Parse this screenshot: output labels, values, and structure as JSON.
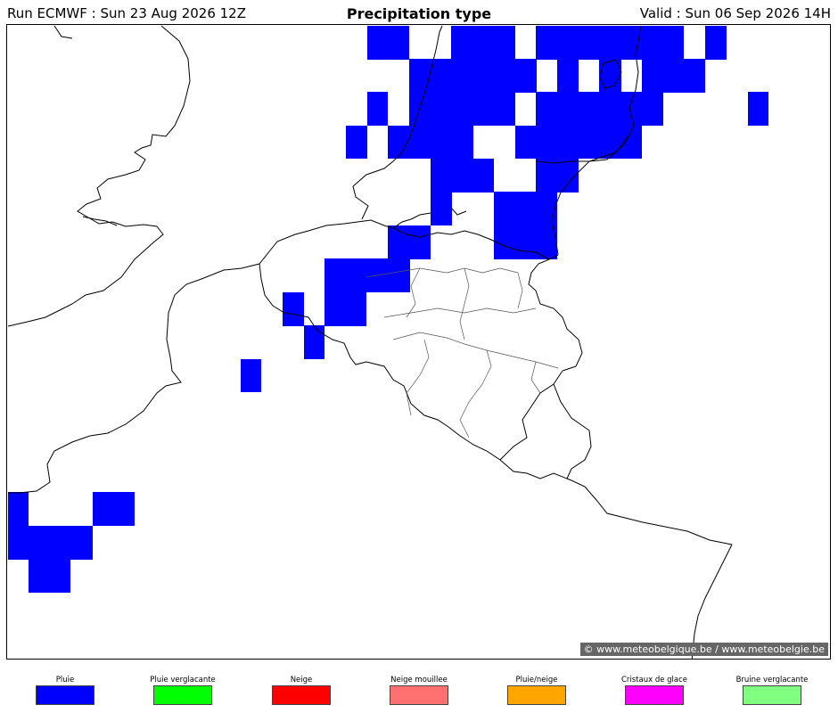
{
  "header": {
    "run": "Run ECMWF : Sun 23 Aug 2026 12Z",
    "title": "Precipitation type",
    "valid": "Valid : Sun 06 Sep 2026 14H"
  },
  "credit": "© www.meteobelgique.be / www.meteobelgie.be",
  "precip_cell_color": "#0000ff",
  "legend": [
    {
      "label": "Pluie",
      "color": "#0000ff"
    },
    {
      "label": "Pluie verglacante",
      "color": "#00ff00"
    },
    {
      "label": "Neige",
      "color": "#ff0000"
    },
    {
      "label": "Neige mouillee",
      "color": "#ff7070"
    },
    {
      "label": "Pluie/neige",
      "color": "#ffa500"
    },
    {
      "label": "Cristaux de glace",
      "color": "#ff00ff"
    },
    {
      "label": "Bruine verglacante",
      "color": "#80ff80"
    }
  ]
}
